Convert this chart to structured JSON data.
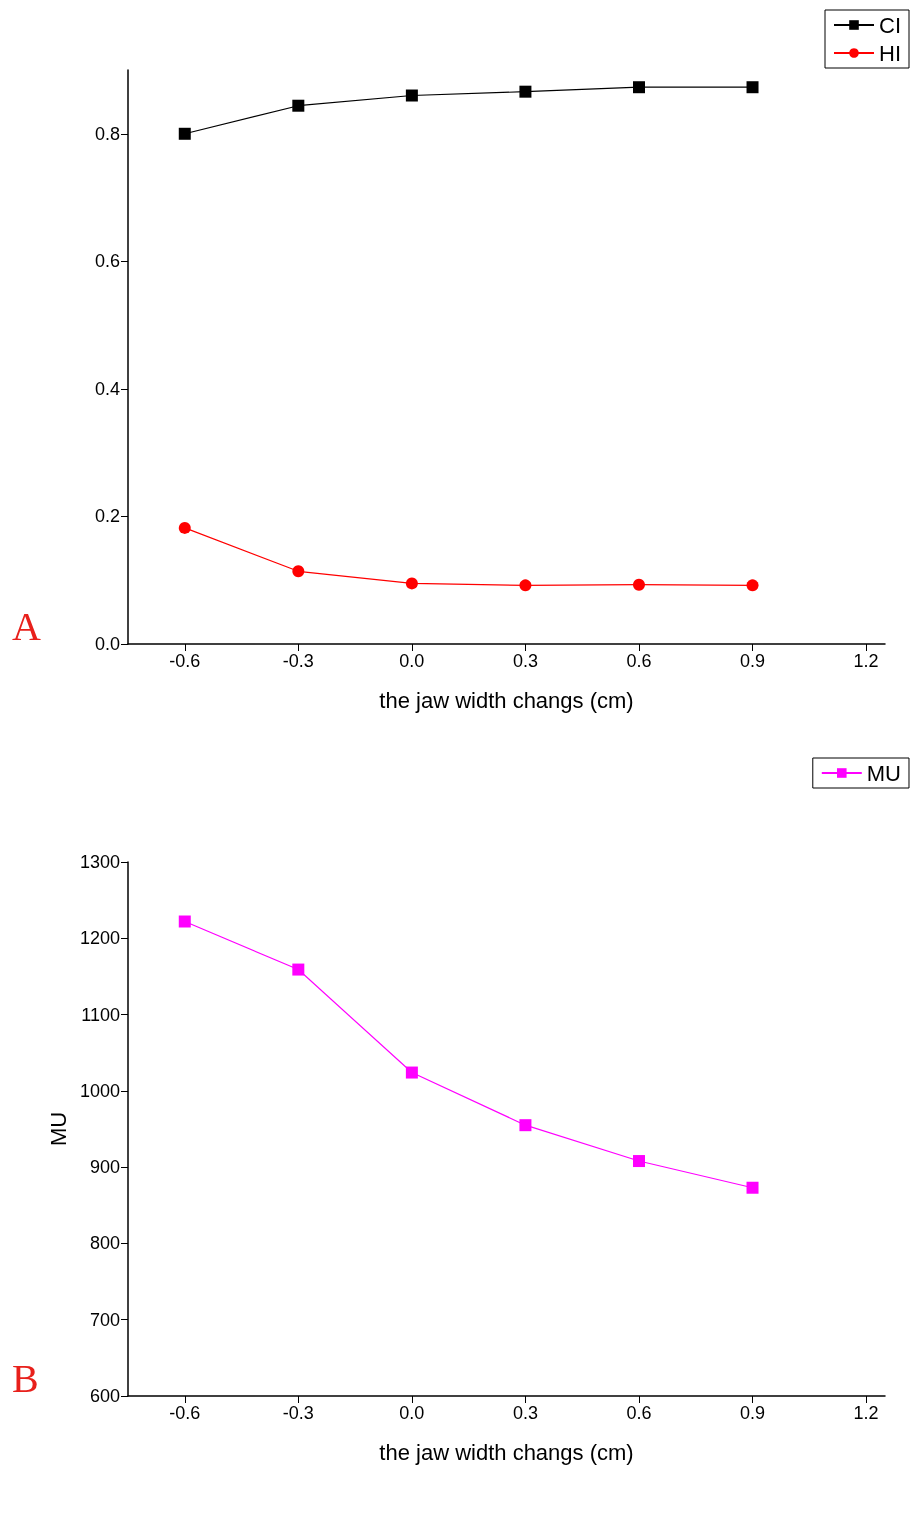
{
  "chart_data": [
    {
      "type": "line",
      "xlabel": "the jaw width changs (cm)",
      "annotations": [
        "A"
      ],
      "x": [
        -0.6,
        -0.3,
        0,
        0.3,
        0.6,
        0.9
      ],
      "series": [
        {
          "name": "CI",
          "color": "#000000",
          "marker": "square",
          "values": [
            0.8,
            0.844,
            0.86,
            0.866,
            0.873,
            0.873
          ]
        },
        {
          "name": "HI",
          "color": "#ff0000",
          "marker": "circle",
          "values": [
            0.182,
            0.114,
            0.095,
            0.092,
            0.093,
            0.092
          ]
        }
      ],
      "xlim": [
        -0.75,
        1.25
      ],
      "xticks": [
        -0.6,
        -0.3,
        {
          "value": 0,
          "label": "0.0"
        },
        0.3,
        0.6,
        0.9,
        1.2
      ],
      "ylim": [
        0,
        0.9
      ],
      "yticks": [
        {
          "value": 0,
          "label": "0.0"
        },
        0.2,
        0.4,
        0.6,
        0.8
      ],
      "grid": false,
      "legend": "top right",
      "line_style": "solid"
    },
    {
      "type": "line",
      "xlabel": "the jaw width changs (cm)",
      "ylabel": "MU",
      "annotations": [
        "B"
      ],
      "x": [
        -0.6,
        -0.3,
        0,
        0.3,
        0.6,
        0.9
      ],
      "series": [
        {
          "name": "MU",
          "color": "#ff00ff",
          "marker": "square",
          "values": [
            1222,
            1159,
            1024,
            955,
            908,
            873
          ]
        }
      ],
      "xlim": [
        -0.75,
        1.25
      ],
      "xticks": [
        -0.6,
        -0.3,
        {
          "value": 0,
          "label": "0.0"
        },
        0.3,
        0.6,
        0.9,
        1.2
      ],
      "ylim": [
        600,
        1300
      ],
      "yticks": [
        600,
        700,
        800,
        900,
        1000,
        1100,
        1200,
        1300
      ],
      "grid": false,
      "legend": "top right",
      "line_style": "solid"
    }
  ]
}
